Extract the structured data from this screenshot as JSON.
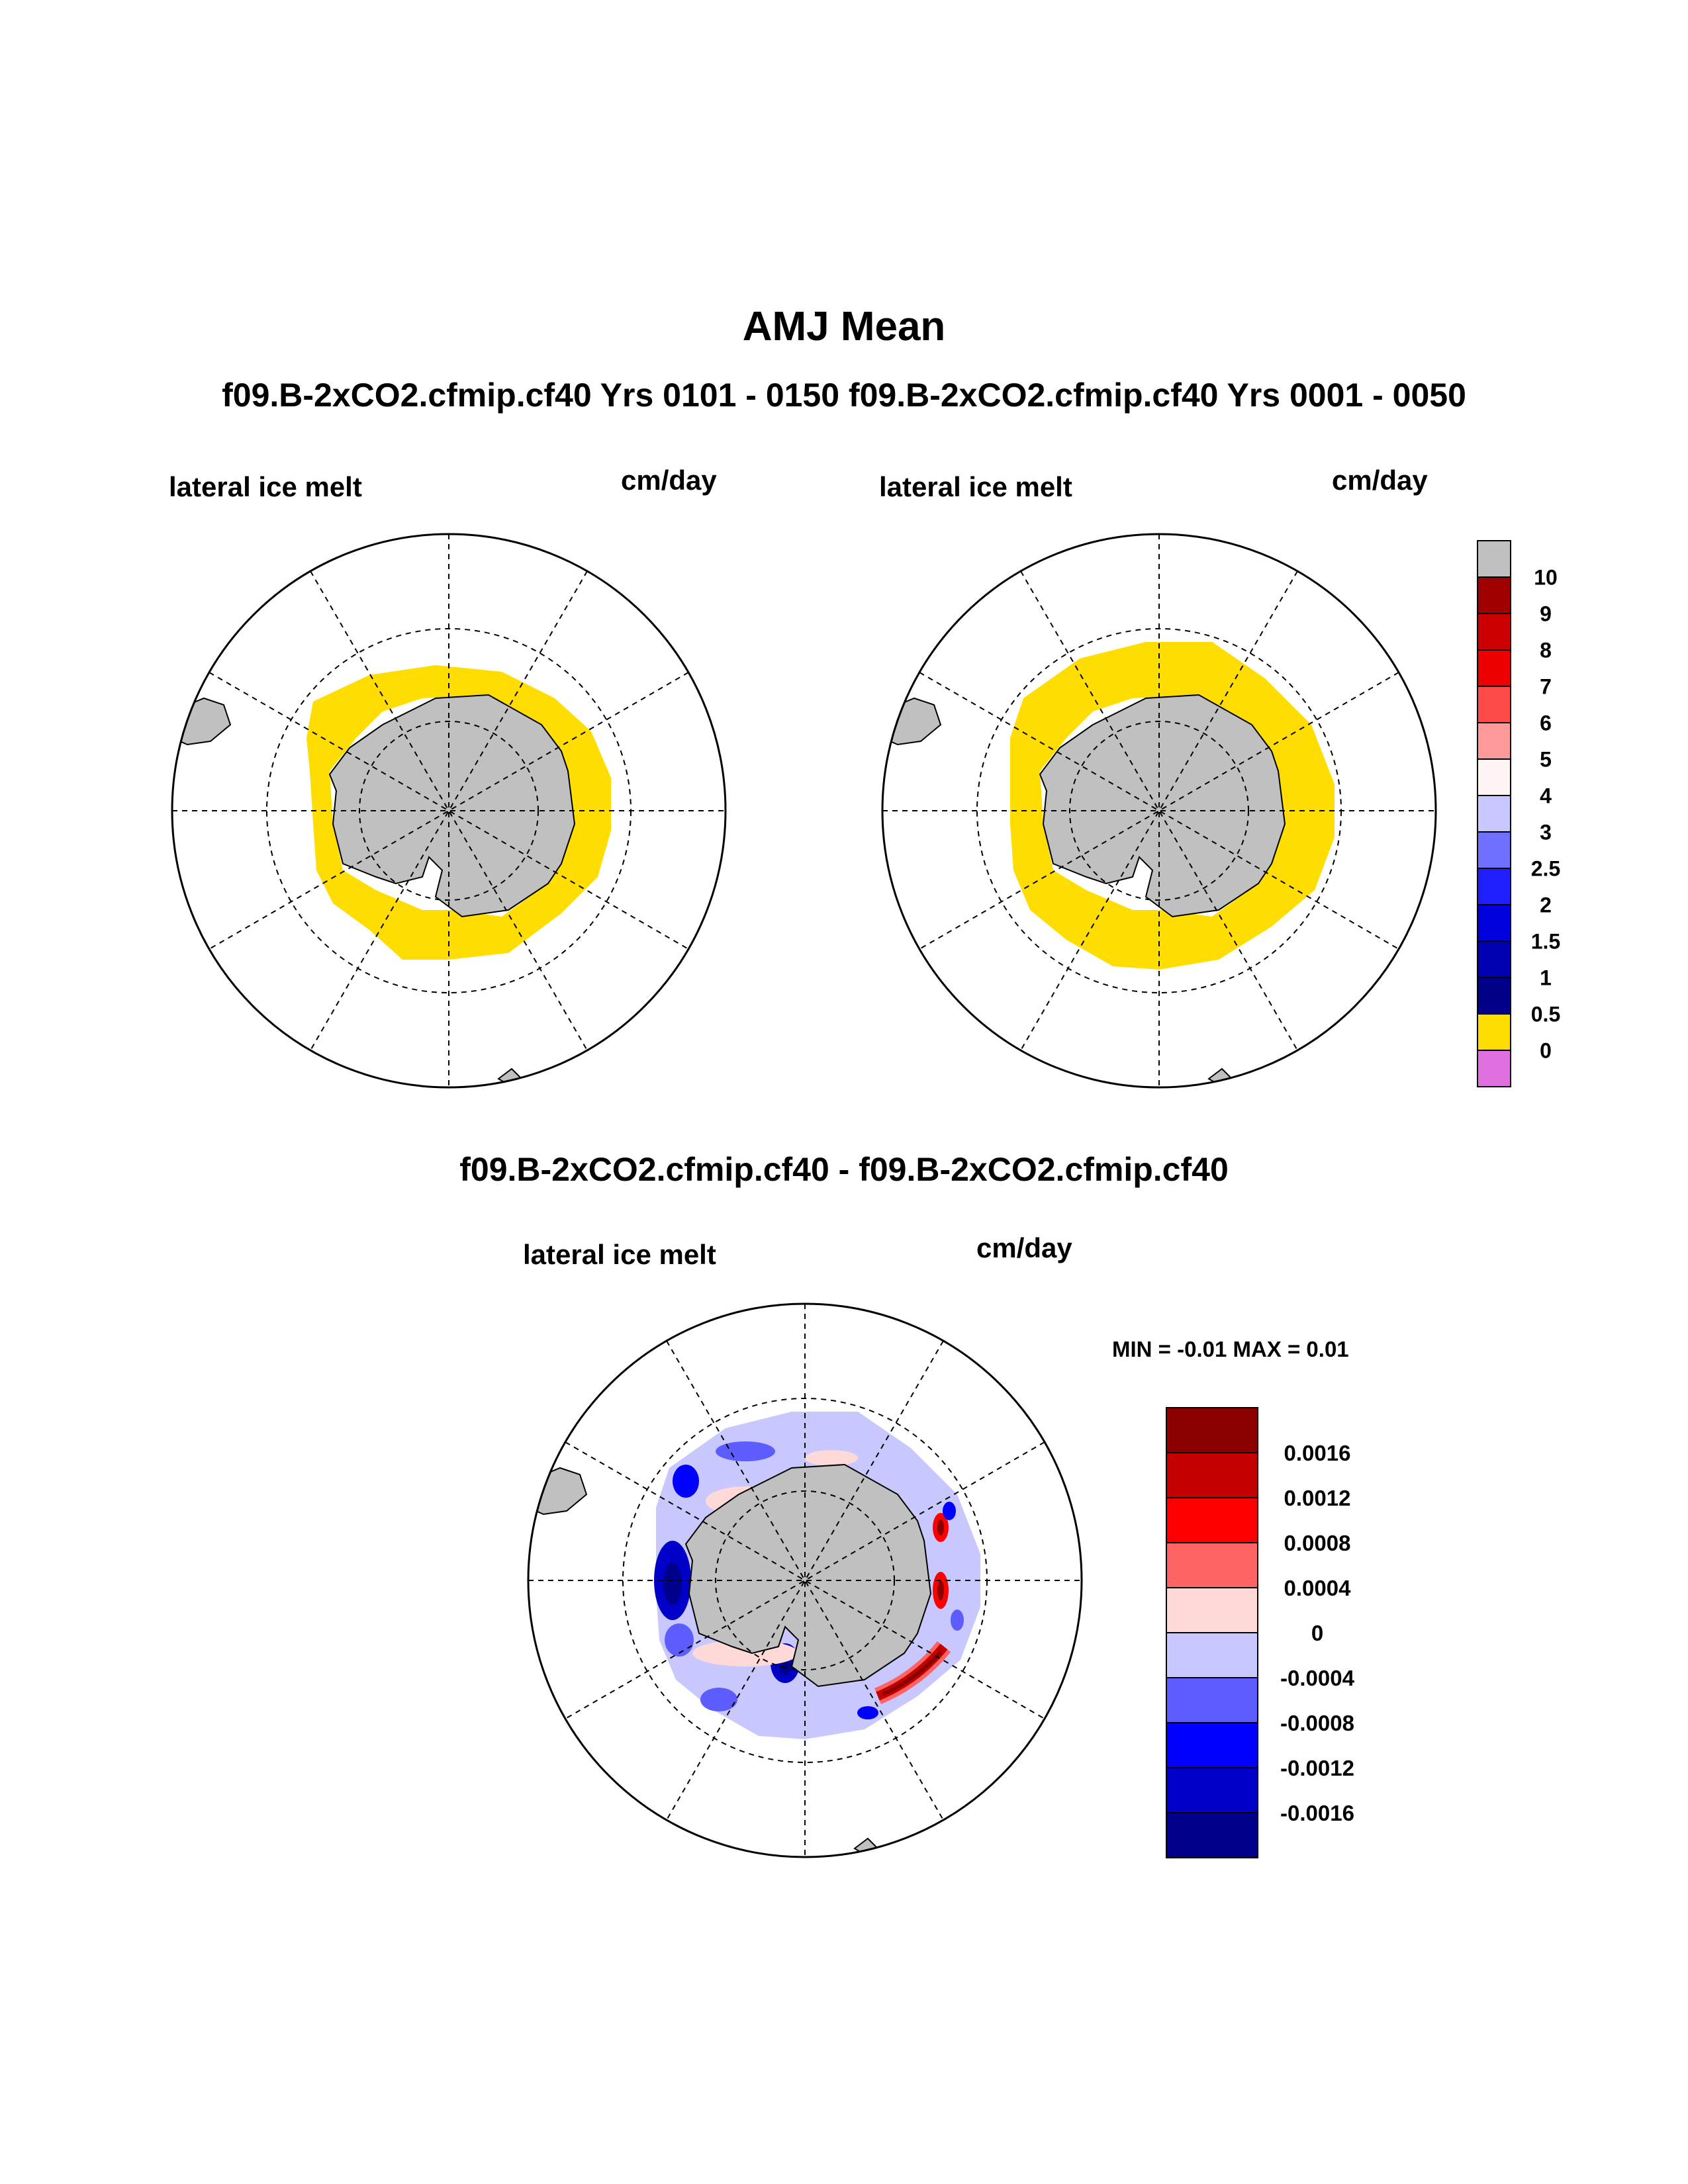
{
  "title": "AMJ Mean",
  "subtitle": "f09.B-2xCO2.cfmip.cf40  Yrs 0101 - 0150 f09.B-2xCO2.cfmip.cf40  Yrs 0001 - 0050",
  "diff_title": "f09.B-2xCO2.cfmip.cf40 - f09.B-2xCO2.cfmip.cf40",
  "panels": [
    {
      "variable": "lateral ice melt",
      "units": "cm/day"
    },
    {
      "variable": "lateral ice melt",
      "units": "cm/day"
    },
    {
      "variable": "lateral ice melt",
      "units": "cm/day"
    }
  ],
  "diff_stats": "MIN =  -0.01 MAX =   0.01",
  "colorbar_main": {
    "colors": [
      "#c0c0c0",
      "#a00000",
      "#cc0000",
      "#ee0000",
      "#ff4a4a",
      "#ff9a9a",
      "#fff4f4",
      "#c8c8ff",
      "#7070ff",
      "#2020ff",
      "#0000dd",
      "#0000b0",
      "#000088",
      "#ffdd00",
      "#e070e0"
    ],
    "labels": [
      "10",
      "9",
      "8",
      "7",
      "6",
      "5",
      "4",
      "3",
      "2.5",
      "2",
      "1.5",
      "1",
      "0.5",
      "0"
    ]
  },
  "colorbar_diff": {
    "colors": [
      "#8b0000",
      "#c40000",
      "#ff0000",
      "#ff6464",
      "#ffd8d8",
      "#c8c8ff",
      "#5c5cff",
      "#0000ff",
      "#0000c8",
      "#00008b"
    ],
    "labels": [
      "0.0016",
      "0.0012",
      "0.0008",
      "0.0004",
      "0",
      "-0.0004",
      "-0.0008",
      "-0.0012",
      "-0.0016"
    ]
  }
}
